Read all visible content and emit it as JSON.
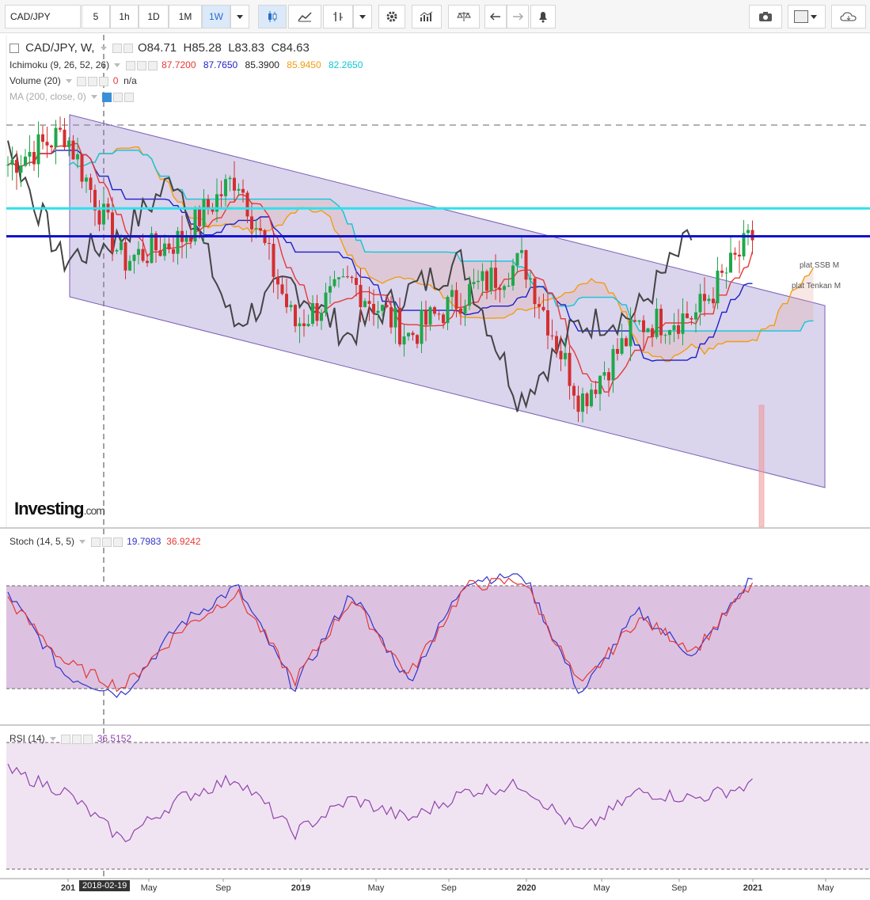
{
  "toolbar": {
    "symbol": "CAD/JPY",
    "intervals": [
      "5",
      "1h",
      "1D",
      "1M",
      "1W"
    ],
    "active_interval": "1W"
  },
  "legend": {
    "pair_title": "CAD/JPY, W,",
    "open": "O84.71",
    "high": "H85.28",
    "low": "L83.83",
    "close": "C84.63",
    "ichimoku": {
      "name": "Ichimoku (9, 26, 52, 26)",
      "values": [
        "87.7200",
        "87.7650",
        "85.3900",
        "85.9450",
        "82.2650"
      ],
      "colors": [
        "#e53935",
        "#1e1ec8",
        "#222222",
        "#f39c12",
        "#10c6d6"
      ]
    },
    "volume": {
      "name": "Volume (20)",
      "value": "0",
      "extra": "n/a"
    },
    "ma": {
      "name": "MA (200, close, 0)"
    }
  },
  "annotations": {
    "ssb": "plat SSB M",
    "tenkan": "plat Tenkan M",
    "watermark": "Investing",
    "watermark_suffix": ".com",
    "crosshair_date": "2018-02-19"
  },
  "stoch": {
    "name": "Stoch (14, 5, 5)",
    "k": "19.7983",
    "d": "36.9242",
    "k_color": "#3333cc",
    "d_color": "#e53935"
  },
  "rsi": {
    "name": "RSI (14)",
    "value": "36.5152",
    "color": "#8e44ad"
  },
  "time_axis": [
    "201",
    "May",
    "Sep",
    "2019",
    "May",
    "Sep",
    "2020",
    "May",
    "Sep",
    "2021",
    "May"
  ],
  "chart_data": [
    {
      "type": "line",
      "title": "CAD/JPY, W",
      "x": [
        "2017-10",
        "2018-01",
        "2018-04",
        "2018-07",
        "2018-10",
        "2019-01",
        "2019-04",
        "2019-07",
        "2019-10",
        "2020-01",
        "2020-04",
        "2020-07",
        "2020-10",
        "2021-01"
      ],
      "series": [
        {
          "name": "Close",
          "values": [
            88.0,
            89.5,
            83.5,
            84.5,
            87.5,
            80.5,
            82.5,
            80.0,
            82.0,
            83.5,
            77.0,
            80.5,
            81.0,
            84.6
          ]
        }
      ],
      "horizontal_lines": [
        {
          "label": "plat SSB M",
          "y": 85.95
        },
        {
          "label": "plat Tenkan M",
          "y": 84.65
        }
      ]
    },
    {
      "type": "line",
      "title": "Stoch (14, 5, 5)",
      "ylim": [
        0,
        100
      ],
      "series": [
        {
          "name": "%K",
          "values": [
            85,
            20,
            5,
            60,
            90,
            10,
            85,
            15,
            95,
            100,
            5,
            70,
            35,
            98
          ]
        },
        {
          "name": "%D",
          "values": [
            80,
            30,
            10,
            55,
            85,
            15,
            80,
            20,
            90,
            95,
            10,
            65,
            40,
            92
          ]
        }
      ]
    },
    {
      "type": "line",
      "title": "RSI (14)",
      "ylim": [
        0,
        100
      ],
      "series": [
        {
          "name": "RSI",
          "values": [
            75,
            60,
            25,
            55,
            70,
            30,
            55,
            40,
            60,
            65,
            30,
            60,
            55,
            65
          ]
        }
      ]
    }
  ]
}
